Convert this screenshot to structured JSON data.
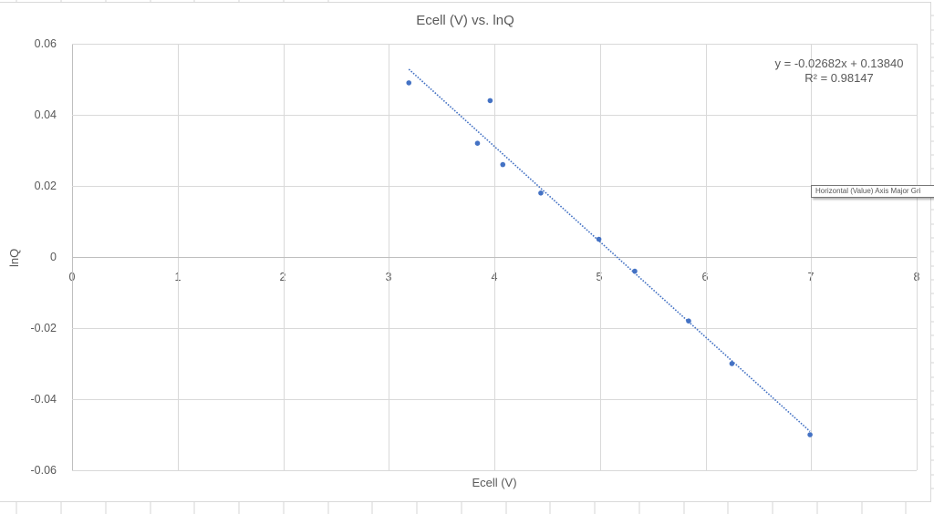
{
  "chart_data": {
    "type": "scatter",
    "title": "Ecell (V) vs. lnQ",
    "xlabel": "Ecell (V)",
    "ylabel": "lnQ",
    "xlim": [
      0,
      8
    ],
    "ylim": [
      -0.06,
      0.06
    ],
    "x_ticks": [
      "0",
      "1",
      "2",
      "3",
      "4",
      "5",
      "6",
      "7",
      "8"
    ],
    "y_ticks": [
      "0.06",
      "0.04",
      "0.02",
      "0",
      "-0.02",
      "-0.04",
      "-0.06"
    ],
    "grid": true,
    "legend": "none",
    "series": [
      {
        "name": "lnQ",
        "color": "#4472c4",
        "points": [
          {
            "x": 3.19,
            "y": 0.049
          },
          {
            "x": 3.84,
            "y": 0.032
          },
          {
            "x": 3.96,
            "y": 0.044
          },
          {
            "x": 4.08,
            "y": 0.026
          },
          {
            "x": 4.44,
            "y": 0.018
          },
          {
            "x": 4.99,
            "y": 0.005
          },
          {
            "x": 5.33,
            "y": -0.004
          },
          {
            "x": 5.84,
            "y": -0.018
          },
          {
            "x": 6.25,
            "y": -0.03
          },
          {
            "x": 6.99,
            "y": -0.05
          }
        ]
      }
    ],
    "trendline": {
      "type": "linear",
      "style": "dotted",
      "color": "#4472c4",
      "slope": -0.02682,
      "intercept": 0.1384,
      "x_range": [
        3.19,
        6.99
      ],
      "equation_label": "y = -0.02682x + 0.13840",
      "r_squared_label": "R² = 0.98147"
    },
    "annotations": [
      "y = -0.02682x + 0.13840",
      "R² = 0.98147"
    ]
  },
  "tooltip": {
    "text": "Horizontal (Value) Axis Major Gri"
  }
}
